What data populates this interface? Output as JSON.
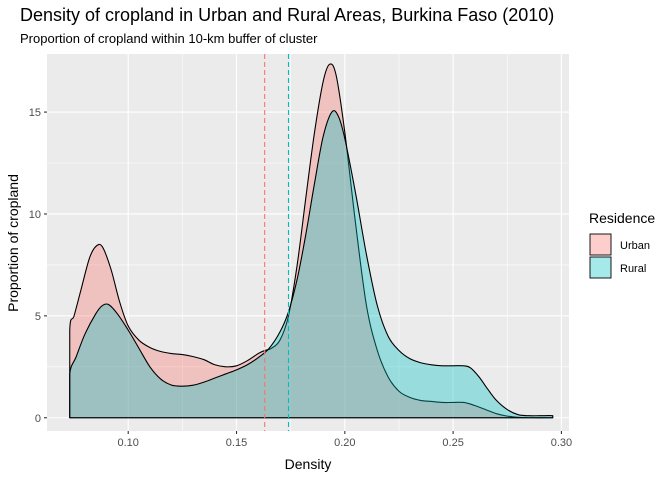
{
  "chart_data": {
    "type": "area",
    "title": "Density of cropland in Urban and Rural Areas, Burkina Faso (2010)",
    "subtitle": "Proportion of cropland within 10-km buffer of cluster",
    "xlabel": "Density",
    "ylabel": "Proportion of cropland",
    "xlim": [
      0.0625,
      0.3035
    ],
    "ylim": [
      -0.65,
      17.85
    ],
    "x_ticks": [
      0.1,
      0.15,
      0.2,
      0.25,
      0.3
    ],
    "x_tick_labels": [
      "0.10",
      "0.15",
      "0.20",
      "0.25",
      "0.30"
    ],
    "y_ticks": [
      0,
      5,
      10,
      15
    ],
    "y_tick_labels": [
      "0",
      "5",
      "10",
      "15"
    ],
    "grid": true,
    "legend": {
      "title": "Residence",
      "position": "right",
      "entries": [
        "Urban",
        "Rural"
      ]
    },
    "colors": {
      "Urban": "#F8766D",
      "Rural": "#00BFC4",
      "panel_background": "#EBEBEB",
      "grid": "#FFFFFF",
      "outline": "#000000"
    },
    "series": [
      {
        "name": "Urban",
        "mean": 0.163,
        "points": [
          [
            0.073,
            0.0
          ],
          [
            0.073,
            4.3
          ],
          [
            0.075,
            5.0
          ],
          [
            0.078,
            6.2
          ],
          [
            0.082,
            7.8
          ],
          [
            0.085,
            8.4
          ],
          [
            0.088,
            8.4
          ],
          [
            0.092,
            7.3
          ],
          [
            0.096,
            5.7
          ],
          [
            0.1,
            4.5
          ],
          [
            0.105,
            3.8
          ],
          [
            0.11,
            3.45
          ],
          [
            0.115,
            3.25
          ],
          [
            0.12,
            3.15
          ],
          [
            0.125,
            3.1
          ],
          [
            0.13,
            3.0
          ],
          [
            0.135,
            2.85
          ],
          [
            0.14,
            2.6
          ],
          [
            0.145,
            2.5
          ],
          [
            0.15,
            2.55
          ],
          [
            0.155,
            2.8
          ],
          [
            0.16,
            3.15
          ],
          [
            0.163,
            3.3
          ],
          [
            0.166,
            3.4
          ],
          [
            0.17,
            3.8
          ],
          [
            0.174,
            5.0
          ],
          [
            0.178,
            7.5
          ],
          [
            0.182,
            10.8
          ],
          [
            0.186,
            14.0
          ],
          [
            0.19,
            16.5
          ],
          [
            0.193,
            17.35
          ],
          [
            0.196,
            16.8
          ],
          [
            0.2,
            14.0
          ],
          [
            0.205,
            9.5
          ],
          [
            0.21,
            5.5
          ],
          [
            0.215,
            3.3
          ],
          [
            0.22,
            2.0
          ],
          [
            0.225,
            1.3
          ],
          [
            0.23,
            1.0
          ],
          [
            0.235,
            0.85
          ],
          [
            0.24,
            0.8
          ],
          [
            0.245,
            0.75
          ],
          [
            0.25,
            0.75
          ],
          [
            0.255,
            0.75
          ],
          [
            0.26,
            0.6
          ],
          [
            0.265,
            0.4
          ],
          [
            0.27,
            0.2
          ],
          [
            0.275,
            0.08
          ],
          [
            0.28,
            0.02
          ],
          [
            0.285,
            0.0
          ],
          [
            0.296,
            0.0
          ]
        ]
      },
      {
        "name": "Rural",
        "mean": 0.174,
        "points": [
          [
            0.073,
            0.0
          ],
          [
            0.073,
            2.15
          ],
          [
            0.076,
            3.0
          ],
          [
            0.08,
            4.1
          ],
          [
            0.085,
            5.1
          ],
          [
            0.088,
            5.5
          ],
          [
            0.091,
            5.55
          ],
          [
            0.095,
            5.1
          ],
          [
            0.1,
            4.3
          ],
          [
            0.105,
            3.4
          ],
          [
            0.11,
            2.5
          ],
          [
            0.115,
            1.9
          ],
          [
            0.12,
            1.6
          ],
          [
            0.125,
            1.55
          ],
          [
            0.13,
            1.6
          ],
          [
            0.135,
            1.75
          ],
          [
            0.14,
            1.95
          ],
          [
            0.145,
            2.15
          ],
          [
            0.15,
            2.35
          ],
          [
            0.155,
            2.6
          ],
          [
            0.16,
            2.95
          ],
          [
            0.165,
            3.4
          ],
          [
            0.17,
            4.2
          ],
          [
            0.174,
            5.2
          ],
          [
            0.178,
            6.8
          ],
          [
            0.182,
            9.0
          ],
          [
            0.186,
            11.5
          ],
          [
            0.19,
            13.8
          ],
          [
            0.194,
            15.0
          ],
          [
            0.197,
            14.8
          ],
          [
            0.2,
            13.7
          ],
          [
            0.205,
            11.0
          ],
          [
            0.21,
            8.0
          ],
          [
            0.215,
            5.5
          ],
          [
            0.22,
            4.0
          ],
          [
            0.225,
            3.3
          ],
          [
            0.23,
            2.9
          ],
          [
            0.235,
            2.7
          ],
          [
            0.24,
            2.6
          ],
          [
            0.245,
            2.55
          ],
          [
            0.25,
            2.55
          ],
          [
            0.255,
            2.55
          ],
          [
            0.258,
            2.45
          ],
          [
            0.262,
            2.0
          ],
          [
            0.266,
            1.4
          ],
          [
            0.27,
            0.85
          ],
          [
            0.275,
            0.4
          ],
          [
            0.28,
            0.15
          ],
          [
            0.285,
            0.1
          ],
          [
            0.29,
            0.1
          ],
          [
            0.296,
            0.1
          ],
          [
            0.296,
            0.0
          ]
        ]
      }
    ]
  }
}
